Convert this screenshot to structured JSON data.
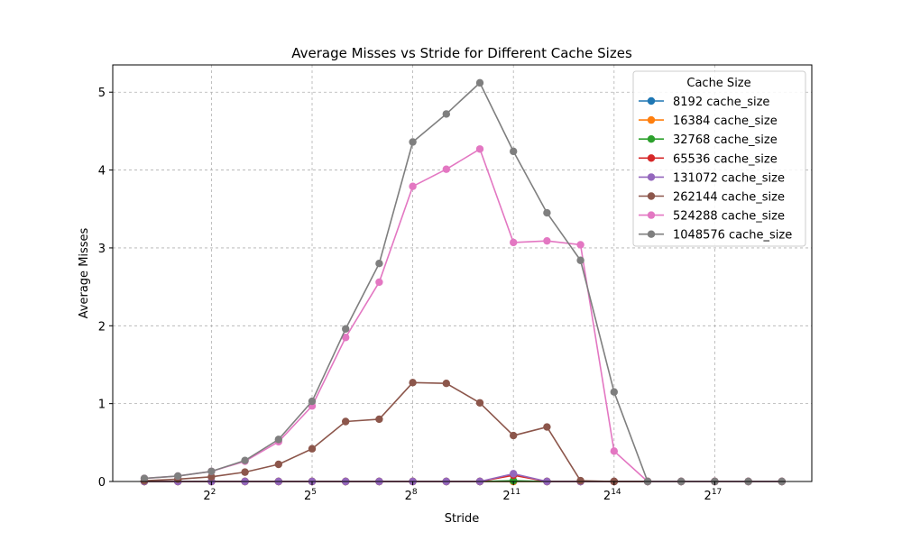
{
  "chart_data": {
    "type": "line",
    "title": "Average Misses vs Stride for Different Cache Sizes",
    "xlabel": "Stride",
    "ylabel": "Average Misses",
    "x_scale": "log2",
    "x": [
      1,
      2,
      4,
      8,
      16,
      32,
      64,
      128,
      256,
      512,
      1024,
      2048,
      4096,
      8192,
      16384,
      32768,
      65536,
      131072,
      262144,
      524288
    ],
    "x_ticks": [
      {
        "value": 4,
        "base": "2",
        "exp": "2"
      },
      {
        "value": 32,
        "base": "2",
        "exp": "5"
      },
      {
        "value": 256,
        "base": "2",
        "exp": "8"
      },
      {
        "value": 2048,
        "base": "2",
        "exp": "11"
      },
      {
        "value": 16384,
        "base": "2",
        "exp": "14"
      },
      {
        "value": 131072,
        "base": "2",
        "exp": "17"
      }
    ],
    "y_ticks": [
      "0",
      "1",
      "2",
      "3",
      "4",
      "5"
    ],
    "ylim": [
      0,
      5.35
    ],
    "grid": true,
    "legend": {
      "title": "Cache Size",
      "placement": "top-right"
    },
    "series": [
      {
        "name": "8192 cache_size",
        "color": "#1f77b4",
        "values": [
          0,
          0,
          0,
          0,
          0,
          0,
          0,
          0,
          0,
          0,
          0,
          0,
          0,
          0,
          0,
          0,
          0,
          0,
          0,
          0
        ]
      },
      {
        "name": "16384 cache_size",
        "color": "#ff7f0e",
        "values": [
          0,
          0,
          0,
          0,
          0,
          0,
          0,
          0,
          0,
          0,
          0,
          0,
          0,
          0,
          0,
          0,
          0,
          0,
          0,
          0
        ]
      },
      {
        "name": "32768 cache_size",
        "color": "#2ca02c",
        "values": [
          0,
          0,
          0,
          0,
          0,
          0,
          0,
          0,
          0,
          0,
          0,
          0.01,
          0,
          0,
          0,
          0,
          0,
          0,
          0,
          0
        ]
      },
      {
        "name": "65536 cache_size",
        "color": "#d62728",
        "values": [
          0,
          0,
          0,
          0,
          0,
          0,
          0,
          0,
          0,
          0,
          0,
          0.08,
          0,
          0,
          0,
          0,
          0,
          0,
          0,
          0
        ]
      },
      {
        "name": "131072 cache_size",
        "color": "#9467bd",
        "values": [
          0,
          0,
          0,
          0,
          0,
          0,
          0,
          0,
          0,
          0,
          0,
          0.1,
          0,
          0,
          0,
          0,
          0,
          0,
          0,
          0
        ]
      },
      {
        "name": "262144 cache_size",
        "color": "#8c564b",
        "values": [
          0.01,
          0.03,
          0.06,
          0.12,
          0.22,
          0.42,
          0.77,
          0.8,
          1.27,
          1.26,
          1.01,
          0.59,
          0.7,
          0.01,
          0,
          0,
          0,
          0,
          0,
          0
        ]
      },
      {
        "name": "524288 cache_size",
        "color": "#e377c2",
        "values": [
          0.04,
          0.07,
          0.13,
          0.26,
          0.51,
          0.97,
          1.85,
          2.56,
          3.79,
          4.01,
          4.27,
          3.07,
          3.09,
          3.04,
          0.39,
          0,
          0,
          0,
          0,
          0
        ]
      },
      {
        "name": "1048576 cache_size",
        "color": "#7f7f7f",
        "values": [
          0.04,
          0.07,
          0.13,
          0.27,
          0.54,
          1.03,
          1.96,
          2.8,
          4.36,
          4.72,
          5.12,
          4.24,
          3.45,
          2.84,
          1.15,
          0,
          0,
          0,
          0,
          0
        ]
      }
    ]
  }
}
